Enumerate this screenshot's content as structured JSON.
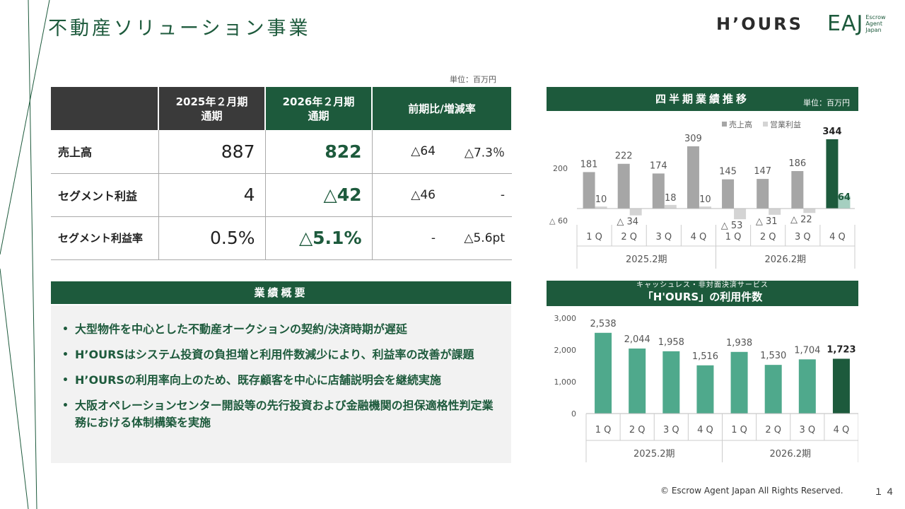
{
  "page": {
    "title": "不動産ソリューション事業",
    "logo_hours": "H’OURS",
    "logo_eaj": "EAJ",
    "logo_eaj_small": [
      "Escrow",
      "Agent",
      "Japan"
    ],
    "footer": "© Escrow Agent Japan All Rights Reserved.",
    "page_number": "１４"
  },
  "table": {
    "unit": "単位：百万円",
    "headers": [
      "",
      "2025年２月期\n通期",
      "2026年２月期\n通期",
      "前期比/増減率"
    ],
    "rows": [
      {
        "label": "売上高",
        "fy2025": "887",
        "fy2026": "822",
        "diff": "△64",
        "rate": "△7.3％"
      },
      {
        "label": "セグメント利益",
        "fy2025": "4",
        "fy2026": "△42",
        "diff": "△46",
        "rate": "-"
      },
      {
        "label": "セグメント利益率",
        "fy2025": "0.5%",
        "fy2026": "△5.1%",
        "diff": "-",
        "rate": "△5.6pt"
      }
    ]
  },
  "summary": {
    "title": "業績概要",
    "bullets": [
      "大型物件を中心とした不動産オークションの契約/決済時期が遅延",
      "H’OURSはシステム投資の負担増と利用件数減少により、利益率の改善が課題",
      "H’OURSの利用率向上のため、既存顧客を中心に店舗説明会を継続実施",
      "大阪オペレーションセンター開設等の先行投資および金融機関の担保適格性判定業務における体制構築を実施"
    ]
  },
  "chart_data": [
    {
      "type": "bar",
      "title": "四半期業績推移",
      "unit": "単位：百万円",
      "categories": [
        "1Q",
        "2Q",
        "3Q",
        "4Q",
        "1Q",
        "2Q",
        "3Q",
        "4Q"
      ],
      "category_labels": [
        "1 Q",
        "2 Q",
        "3 Q",
        "4 Q",
        "1 Q",
        "2 Q",
        "3 Q",
        "4 Q"
      ],
      "groups": [
        "2025.2期",
        "2026.2期"
      ],
      "series": [
        {
          "name": "売上高",
          "values": [
            181,
            222,
            174,
            309,
            145,
            147,
            186,
            344
          ],
          "labels": [
            "181",
            "222",
            "174",
            "309",
            "145",
            "147",
            "186",
            "344"
          ],
          "color": "#a6a6a6",
          "highlight_color": "#1d5a3c"
        },
        {
          "name": "営業利益",
          "values": [
            10,
            -34,
            18,
            10,
            -53,
            -31,
            -22,
            64
          ],
          "labels": [
            "10",
            "△ 34",
            "18",
            "10",
            "△ 53",
            "△ 31",
            "△ 22",
            "64"
          ],
          "color": "#d4d4d4",
          "highlight_color": "#a5cfc0"
        }
      ],
      "y_ticks": [
        {
          "value": 200,
          "label": "200"
        },
        {
          "value": -60,
          "label": "△ 60"
        }
      ],
      "legend": "top-right",
      "grid": false
    },
    {
      "type": "bar",
      "subtitle": "キャッシュレス・非対面決済サービス",
      "title": "「H'OURS」の利用件数",
      "categories": [
        "1Q",
        "2Q",
        "3Q",
        "4Q",
        "1Q",
        "2Q",
        "3Q",
        "4Q"
      ],
      "category_labels": [
        "1 Q",
        "2 Q",
        "3 Q",
        "4 Q",
        "1 Q",
        "2 Q",
        "3 Q",
        "4 Q"
      ],
      "groups": [
        "2025.2期",
        "2026.2期"
      ],
      "values": [
        2538,
        2044,
        1958,
        1516,
        1938,
        1530,
        1704,
        1723
      ],
      "labels": [
        "2,538",
        "2,044",
        "1,958",
        "1,516",
        "1,938",
        "1,530",
        "1,704",
        "1,723"
      ],
      "ylim": [
        0,
        3000
      ],
      "y_ticks": [
        "0",
        "1,000",
        "2,000",
        "3,000"
      ],
      "color": "#4fa98c",
      "highlight_color": "#1d5a3c",
      "grid": false
    }
  ]
}
